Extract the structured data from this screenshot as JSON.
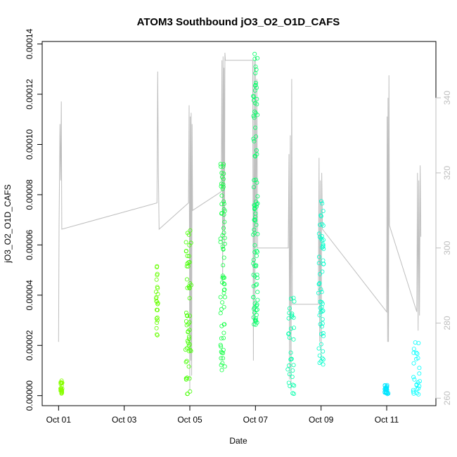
{
  "chart_data": {
    "type": "scatter",
    "title": "ATOM3 Southbound jO3_O2_O1D_CAFS",
    "xlabel": "Date",
    "ylabel": "jO3_O2_O1D_CAFS",
    "xlim": [
      "2016-09-30T12:00",
      "2016-10-12T12:00"
    ],
    "ylim": [
      -4e-06,
      0.000141
    ],
    "y2lim": [
      258,
      355
    ],
    "x_ticks": [
      {
        "date": "2016-10-01",
        "label": "Oct 01"
      },
      {
        "date": "2016-10-03",
        "label": "Oct 03"
      },
      {
        "date": "2016-10-05",
        "label": "Oct 05"
      },
      {
        "date": "2016-10-07",
        "label": "Oct 07"
      },
      {
        "date": "2016-10-09",
        "label": "Oct 09"
      },
      {
        "date": "2016-10-11",
        "label": "Oct 11"
      }
    ],
    "y_ticks": [
      {
        "value": 0.0,
        "label": "0.00000"
      },
      {
        "value": 2e-05,
        "label": "0.00002"
      },
      {
        "value": 4e-05,
        "label": "0.00004"
      },
      {
        "value": 6e-05,
        "label": "0.00006"
      },
      {
        "value": 8e-05,
        "label": "0.00008"
      },
      {
        "value": 0.0001,
        "label": "0.00010"
      },
      {
        "value": 0.00012,
        "label": "0.00012"
      },
      {
        "value": 0.00014,
        "label": "0.00014"
      }
    ],
    "y2_ticks": [
      {
        "value": 260,
        "label": "260"
      },
      {
        "value": 280,
        "label": "280"
      },
      {
        "value": 300,
        "label": "300"
      },
      {
        "value": 320,
        "label": "320"
      },
      {
        "value": 340,
        "label": "340"
      }
    ],
    "grid": false,
    "legend": "none",
    "series": [
      {
        "axis": "left",
        "style": "open circles",
        "clusters": [
          {
            "date": "2016-10-01T02:00",
            "width_days": 0.06,
            "ymin": 5e-07,
            "ymax": 6e-06,
            "color": "#88ff00"
          },
          {
            "date": "2016-10-04T00:00",
            "width_days": 0.06,
            "ymin": 2.4e-05,
            "ymax": 5.3e-05,
            "color": "#66ff00"
          },
          {
            "date": "2016-10-04T23:00",
            "width_days": 0.18,
            "ymin": 5e-07,
            "ymax": 6.6e-05,
            "color": "#44ff00"
          },
          {
            "date": "2016-10-06T00:00",
            "width_days": 0.14,
            "ymin": 1e-05,
            "ymax": 9.3e-05,
            "color": "#11ff44"
          },
          {
            "date": "2016-10-07T00:00",
            "width_days": 0.14,
            "ymin": 2.8e-05,
            "ymax": 0.000139,
            "color": "#00ff66"
          },
          {
            "date": "2016-10-08T02:00",
            "width_days": 0.2,
            "ymin": 5e-07,
            "ymax": 3.9e-05,
            "color": "#00ffaa"
          },
          {
            "date": "2016-10-09T00:00",
            "width_days": 0.16,
            "ymin": 1.2e-05,
            "ymax": 8e-05,
            "color": "#00ffcc"
          },
          {
            "date": "2016-10-11T00:00",
            "width_days": 0.12,
            "ymin": 5e-07,
            "ymax": 4.5e-06,
            "color": "#00e5ff"
          },
          {
            "date": "2016-10-11T22:00",
            "width_days": 0.22,
            "ymin": 5e-07,
            "ymax": 2.4e-05,
            "color": "#00ffff"
          }
        ]
      },
      {
        "axis": "right",
        "style": "line",
        "color": "#bebebe",
        "points": [
          [
            "2016-10-01T00:00",
            275
          ],
          [
            "2016-10-01T00:20",
            306
          ],
          [
            "2016-10-01T01:00",
            333
          ],
          [
            "2016-10-01T01:30",
            318
          ],
          [
            "2016-10-01T02:00",
            339
          ],
          [
            "2016-10-01T02:20",
            305
          ],
          [
            "2016-10-04T00:00",
            312
          ],
          [
            "2016-10-04T00:30",
            347
          ],
          [
            "2016-10-04T01:00",
            320
          ],
          [
            "2016-10-04T01:30",
            305
          ],
          [
            "2016-10-04T23:00",
            312
          ],
          [
            "2016-10-04T23:30",
            338
          ],
          [
            "2016-10-05T00:00",
            262
          ],
          [
            "2016-10-05T00:20",
            335
          ],
          [
            "2016-10-05T00:40",
            270
          ],
          [
            "2016-10-05T01:00",
            336
          ],
          [
            "2016-10-05T01:20",
            266
          ],
          [
            "2016-10-05T01:40",
            333
          ],
          [
            "2016-10-05T02:00",
            310
          ],
          [
            "2016-10-05T23:00",
            315
          ],
          [
            "2016-10-05T23:30",
            350
          ],
          [
            "2016-10-06T00:00",
            290
          ],
          [
            "2016-10-06T00:20",
            351
          ],
          [
            "2016-10-06T00:40",
            305
          ],
          [
            "2016-10-06T01:00",
            348
          ],
          [
            "2016-10-06T01:20",
            300
          ],
          [
            "2016-10-06T01:40",
            352
          ],
          [
            "2016-10-06T02:00",
            350
          ],
          [
            "2016-10-06T22:00",
            350
          ],
          [
            "2016-10-06T22:30",
            270
          ],
          [
            "2016-10-06T23:00",
            350
          ],
          [
            "2016-10-06T23:30",
            280
          ],
          [
            "2016-10-07T00:00",
            351
          ],
          [
            "2016-10-07T00:30",
            300
          ],
          [
            "2016-10-07T01:00",
            345
          ],
          [
            "2016-10-07T01:30",
            300
          ],
          [
            "2016-10-08T00:00",
            300
          ],
          [
            "2016-10-08T00:30",
            325
          ],
          [
            "2016-10-08T01:00",
            265
          ],
          [
            "2016-10-08T01:30",
            330
          ],
          [
            "2016-10-08T02:00",
            262
          ],
          [
            "2016-10-08T02:30",
            345
          ],
          [
            "2016-10-08T03:00",
            285
          ],
          [
            "2016-10-08T22:00",
            285
          ],
          [
            "2016-10-08T22:30",
            324
          ],
          [
            "2016-10-08T23:00",
            275
          ],
          [
            "2016-10-08T23:30",
            318
          ],
          [
            "2016-10-09T00:00",
            270
          ],
          [
            "2016-10-09T00:30",
            320
          ],
          [
            "2016-10-09T01:00",
            305
          ],
          [
            "2016-10-11T00:00",
            283
          ],
          [
            "2016-10-11T00:20",
            335
          ],
          [
            "2016-10-11T00:40",
            275
          ],
          [
            "2016-10-11T01:00",
            340
          ],
          [
            "2016-10-11T01:20",
            275
          ],
          [
            "2016-10-11T01:40",
            346
          ],
          [
            "2016-10-11T02:00",
            306
          ],
          [
            "2016-10-11T22:00",
            283
          ],
          [
            "2016-10-11T22:30",
            320
          ],
          [
            "2016-10-11T23:00",
            278
          ],
          [
            "2016-10-11T23:30",
            318
          ],
          [
            "2016-10-12T00:00",
            282
          ],
          [
            "2016-10-12T00:30",
            322
          ],
          [
            "2016-10-12T01:00",
            303
          ]
        ]
      }
    ]
  }
}
